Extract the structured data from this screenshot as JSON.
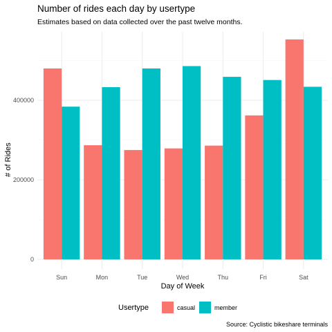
{
  "chart_data": {
    "type": "bar",
    "title": "Number of rides each day by usertype",
    "subtitle": "Estimates based on data collected over the past twelve months.",
    "xlabel": "Day of Week",
    "ylabel": "# of Rides",
    "caption": "Source: Cyclistic bikeshare terminals",
    "categories": [
      "Sun",
      "Mon",
      "Tue",
      "Wed",
      "Thu",
      "Fri",
      "Sat"
    ],
    "ylim": [
      0,
      575000
    ],
    "yticks": [
      0,
      200000,
      400000
    ],
    "ytick_labels": [
      "0",
      "200000",
      "400000"
    ],
    "grid": true,
    "legend": {
      "title": "Usertype",
      "position": "bottom"
    },
    "series": [
      {
        "name": "casual",
        "color": "#F8766D",
        "values": [
          480000,
          287000,
          275000,
          279000,
          286000,
          362000,
          553000
        ]
      },
      {
        "name": "member",
        "color": "#00BFC4",
        "values": [
          384000,
          433000,
          480000,
          486000,
          459000,
          451000,
          434000
        ]
      }
    ]
  }
}
